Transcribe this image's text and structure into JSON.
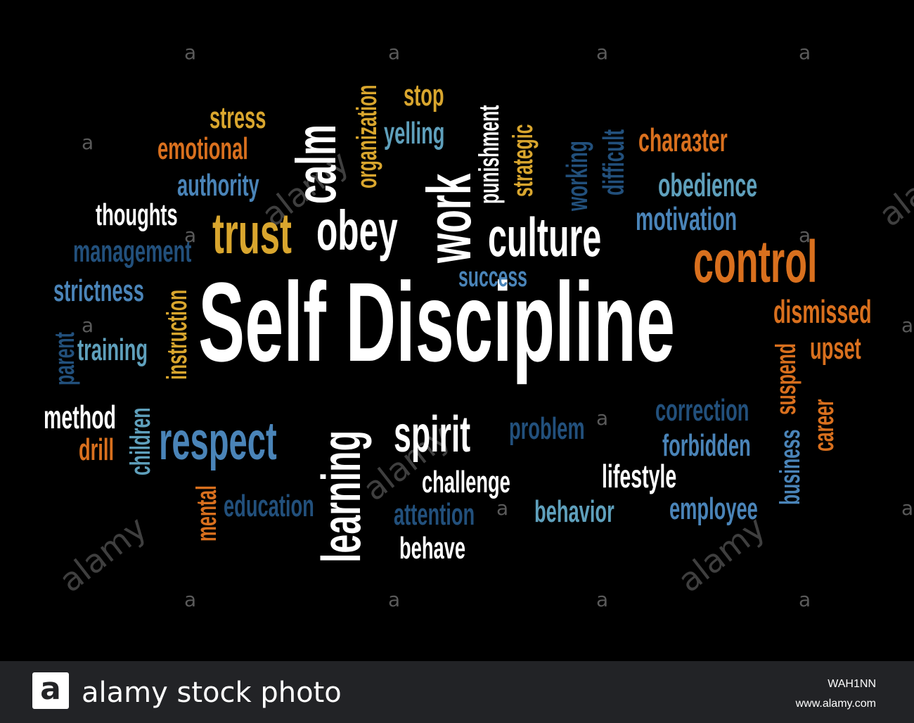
{
  "colors": {
    "white": "#ffffff",
    "orange": "#d9701e",
    "gold": "#d9a62e",
    "blue": "#4a84b8",
    "navy": "#22507c",
    "teal": "#5fa0bc"
  },
  "words": [
    {
      "text": "Self Discipline",
      "color": "white"
    },
    {
      "text": "control",
      "color": "orange"
    },
    {
      "text": "culture",
      "color": "white"
    },
    {
      "text": "trust",
      "color": "gold"
    },
    {
      "text": "obey",
      "color": "white"
    },
    {
      "text": "work",
      "color": "white"
    },
    {
      "text": "calm",
      "color": "white"
    },
    {
      "text": "respect",
      "color": "blue"
    },
    {
      "text": "spirit",
      "color": "white"
    },
    {
      "text": "learning",
      "color": "white"
    },
    {
      "text": "stress",
      "color": "gold"
    },
    {
      "text": "emotional",
      "color": "orange"
    },
    {
      "text": "authority",
      "color": "blue"
    },
    {
      "text": "thoughts",
      "color": "white"
    },
    {
      "text": "management",
      "color": "navy"
    },
    {
      "text": "strictness",
      "color": "blue"
    },
    {
      "text": "training",
      "color": "teal"
    },
    {
      "text": "parent",
      "color": "navy"
    },
    {
      "text": "instruction",
      "color": "gold"
    },
    {
      "text": "method",
      "color": "white"
    },
    {
      "text": "drill",
      "color": "orange"
    },
    {
      "text": "children",
      "color": "teal"
    },
    {
      "text": "mental",
      "color": "orange"
    },
    {
      "text": "education",
      "color": "navy"
    },
    {
      "text": "organization",
      "color": "gold"
    },
    {
      "text": "stop",
      "color": "gold"
    },
    {
      "text": "yelling",
      "color": "teal"
    },
    {
      "text": "punishment",
      "color": "white"
    },
    {
      "text": "strategic",
      "color": "gold"
    },
    {
      "text": "working",
      "color": "navy"
    },
    {
      "text": "difficult",
      "color": "navy"
    },
    {
      "text": "charaзter",
      "color": "orange"
    },
    {
      "text": "obedience",
      "color": "teal"
    },
    {
      "text": "motivation",
      "color": "blue"
    },
    {
      "text": "success",
      "color": "blue"
    },
    {
      "text": "dismissed",
      "color": "orange"
    },
    {
      "text": "upset",
      "color": "orange"
    },
    {
      "text": "suspend",
      "color": "orange"
    },
    {
      "text": "career",
      "color": "orange"
    },
    {
      "text": "business",
      "color": "blue"
    },
    {
      "text": "correction",
      "color": "navy"
    },
    {
      "text": "forbidden",
      "color": "blue"
    },
    {
      "text": "problem",
      "color": "navy"
    },
    {
      "text": "challenge",
      "color": "white"
    },
    {
      "text": "lifestyle",
      "color": "white"
    },
    {
      "text": "behavior",
      "color": "teal"
    },
    {
      "text": "employee",
      "color": "blue"
    },
    {
      "text": "attention",
      "color": "navy"
    },
    {
      "text": "behave",
      "color": "white"
    }
  ],
  "watermarks": {
    "letter": "a",
    "word": "alamy"
  },
  "footer": {
    "logo_letter": "a",
    "brand": "alamy stock photo",
    "image_id": "WAH1NN",
    "site": "www.alamy.com"
  }
}
